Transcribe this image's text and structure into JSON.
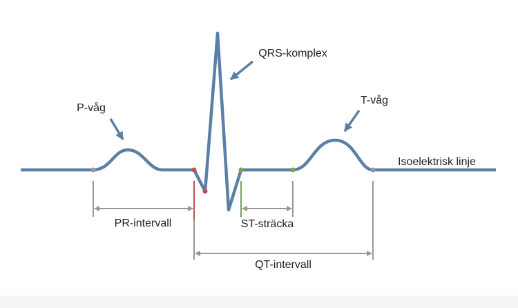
{
  "labels": {
    "p_wave": "P-våg",
    "qrs_complex": "QRS-komplex",
    "t_wave": "T-våg",
    "isoelectric_line": "Isoelektrisk linje",
    "pr_interval": "PR-intervall",
    "st_segment": "ST-sträcka",
    "qt_interval": "QT-intervall"
  }
}
